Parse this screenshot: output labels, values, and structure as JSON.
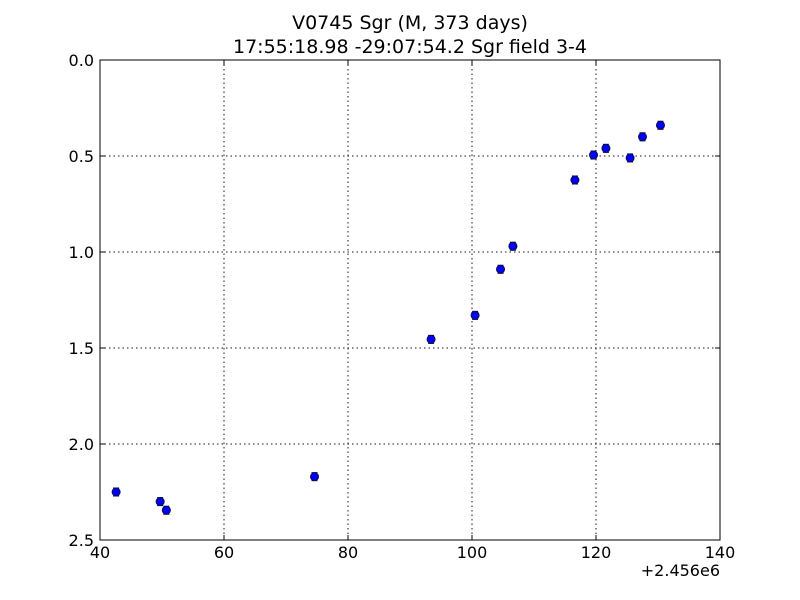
{
  "chart_data": {
    "type": "scatter",
    "title": "V0745 Sgr  (M, 373 days)",
    "subtitle": "17:55:18.98 -29:07:54.2 Sgr field 3-4",
    "xlabel": "",
    "ylabel": "",
    "x_offset_label": "+2.456e6",
    "xlim": [
      40,
      140
    ],
    "ylim": [
      2.5,
      0.0
    ],
    "y_inverted": true,
    "x_ticks": [
      40,
      60,
      80,
      100,
      120,
      140
    ],
    "x_tick_labels": [
      "40",
      "60",
      "80",
      "100",
      "120",
      "140"
    ],
    "y_ticks": [
      0.0,
      0.5,
      1.0,
      1.5,
      2.0,
      2.5
    ],
    "y_tick_labels": [
      "0.0",
      "0.5",
      "1.0",
      "1.5",
      "2.0",
      "2.5"
    ],
    "grid": true,
    "marker_color": "#0000ff",
    "series": [
      {
        "x": [
          42.6,
          49.7,
          50.7,
          74.6,
          93.4,
          100.5,
          104.6,
          106.6,
          116.6,
          119.6,
          121.6,
          125.5,
          127.5,
          130.4
        ],
        "y": [
          2.25,
          2.3,
          2.345,
          2.17,
          1.455,
          1.33,
          1.09,
          0.97,
          0.625,
          0.495,
          0.46,
          0.51,
          0.4,
          0.34
        ]
      }
    ]
  }
}
